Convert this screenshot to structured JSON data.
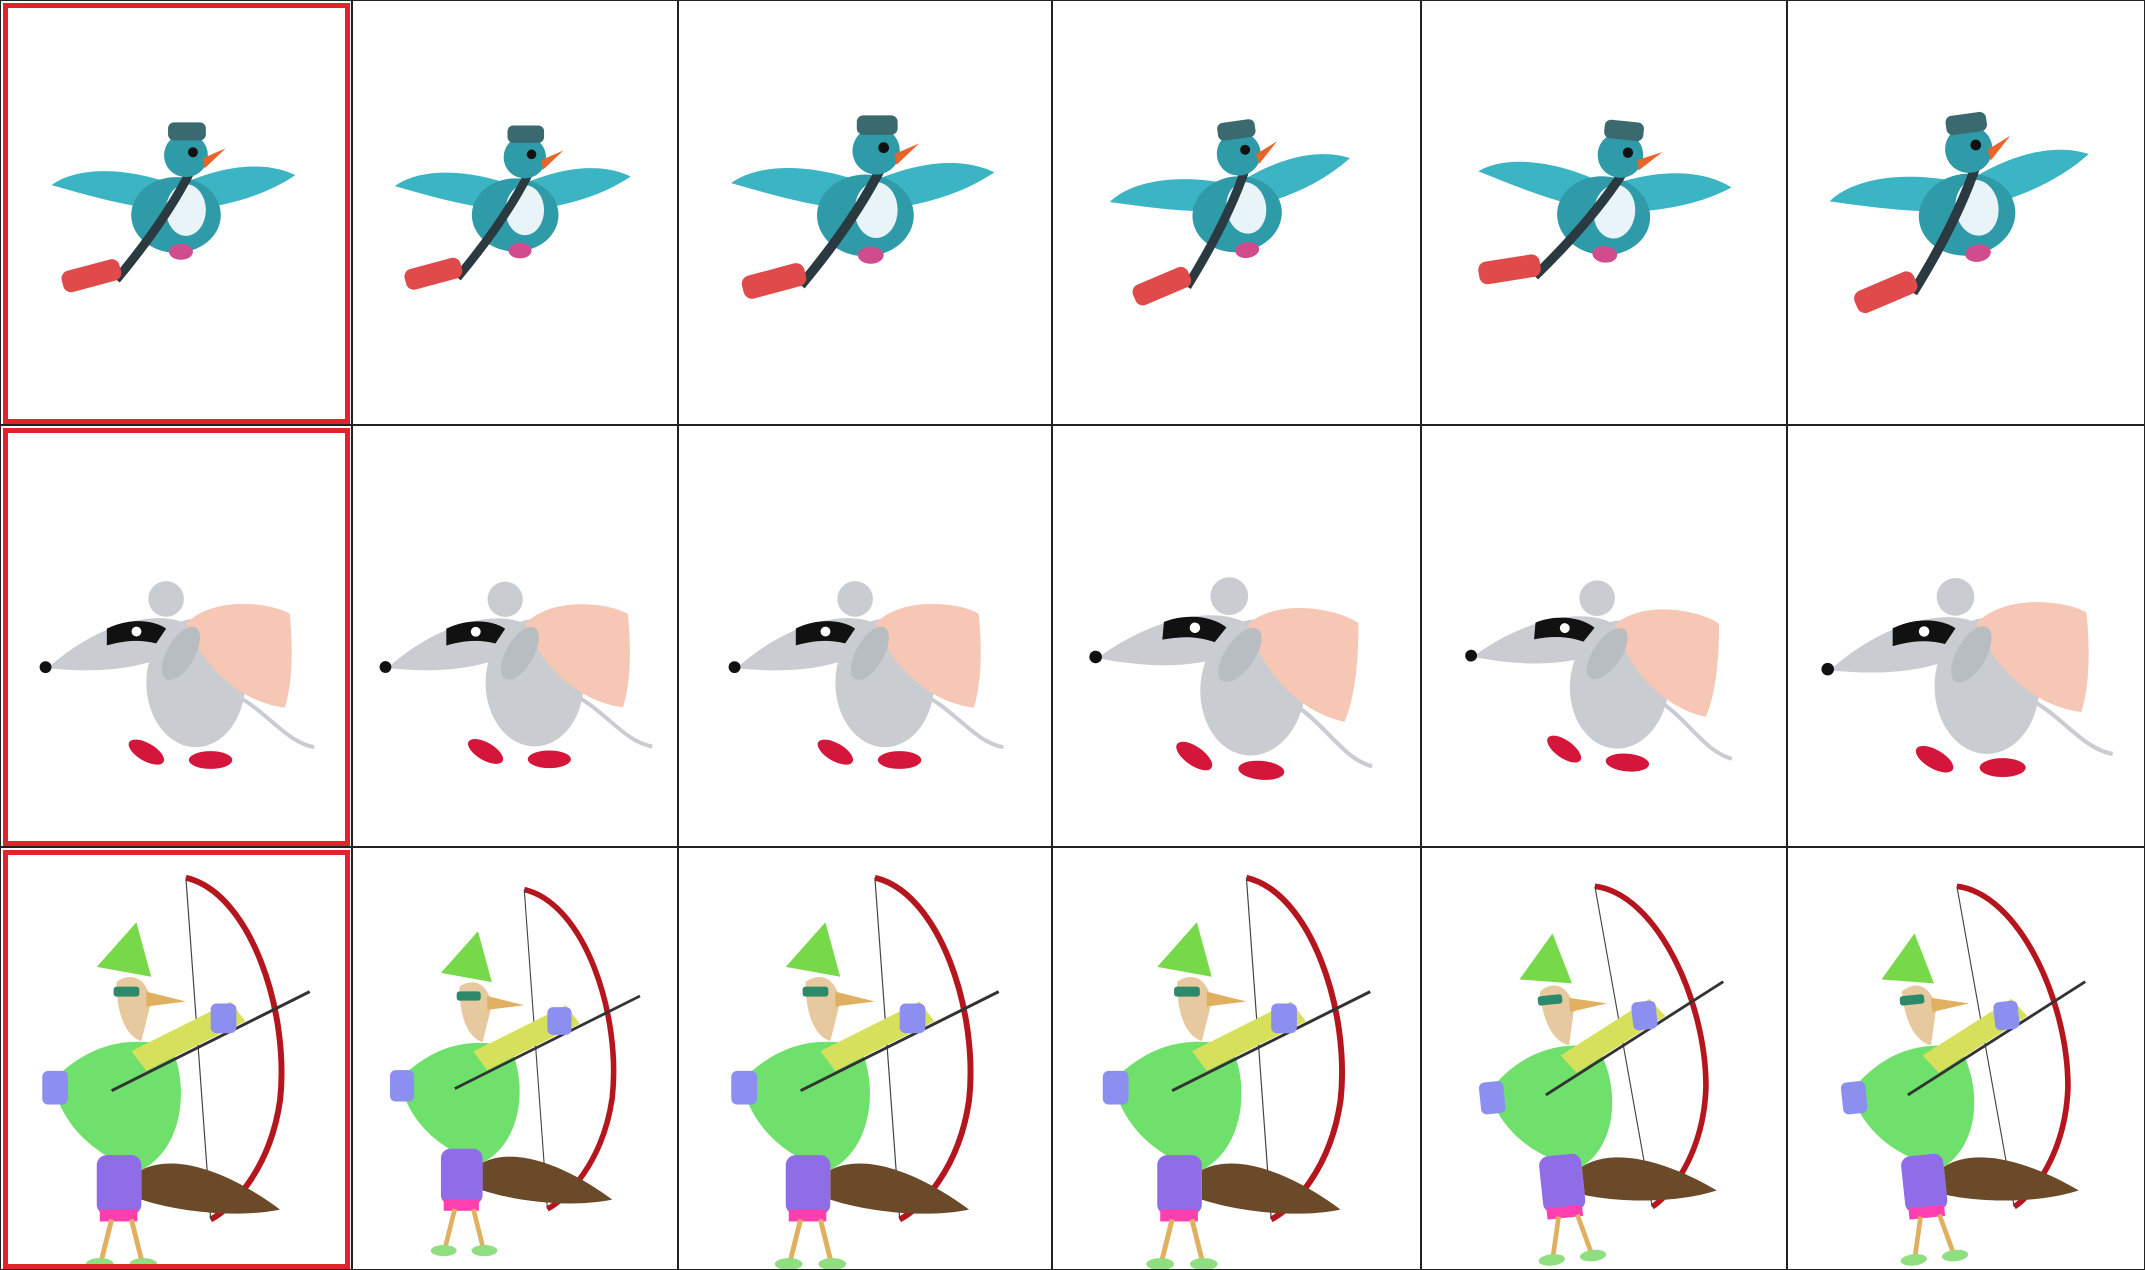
{
  "grid": {
    "rows": 3,
    "columns": 6,
    "highlighted_column": 1,
    "highlight_color": "#e0242b",
    "border_color": "#222222"
  },
  "rows": [
    {
      "name": "pigeon-row",
      "character": "pigeon-icon",
      "frames": 6,
      "colors": {
        "body": "#2f9aa8",
        "wing": "#3bb4c4",
        "dark": "#2b3a40",
        "beak": "#e6652a",
        "bag": "#e14a4a",
        "feet": "#d04c8c"
      }
    },
    {
      "name": "mouse-row",
      "character": "mouse-icon",
      "frames": 6,
      "colors": {
        "body": "#c9cdd2",
        "mask": "#111111",
        "sack": "#f5c7b4",
        "shoes": "#d4163a"
      }
    },
    {
      "name": "archer-row",
      "character": "archer-icon",
      "frames": 6,
      "colors": {
        "shirt": "#6fe06b",
        "hat": "#77d94a",
        "pants": "#8f6de6",
        "bow": "#b5161e",
        "tail": "#6b4a2a",
        "arm": "#8c8ff0"
      }
    }
  ]
}
